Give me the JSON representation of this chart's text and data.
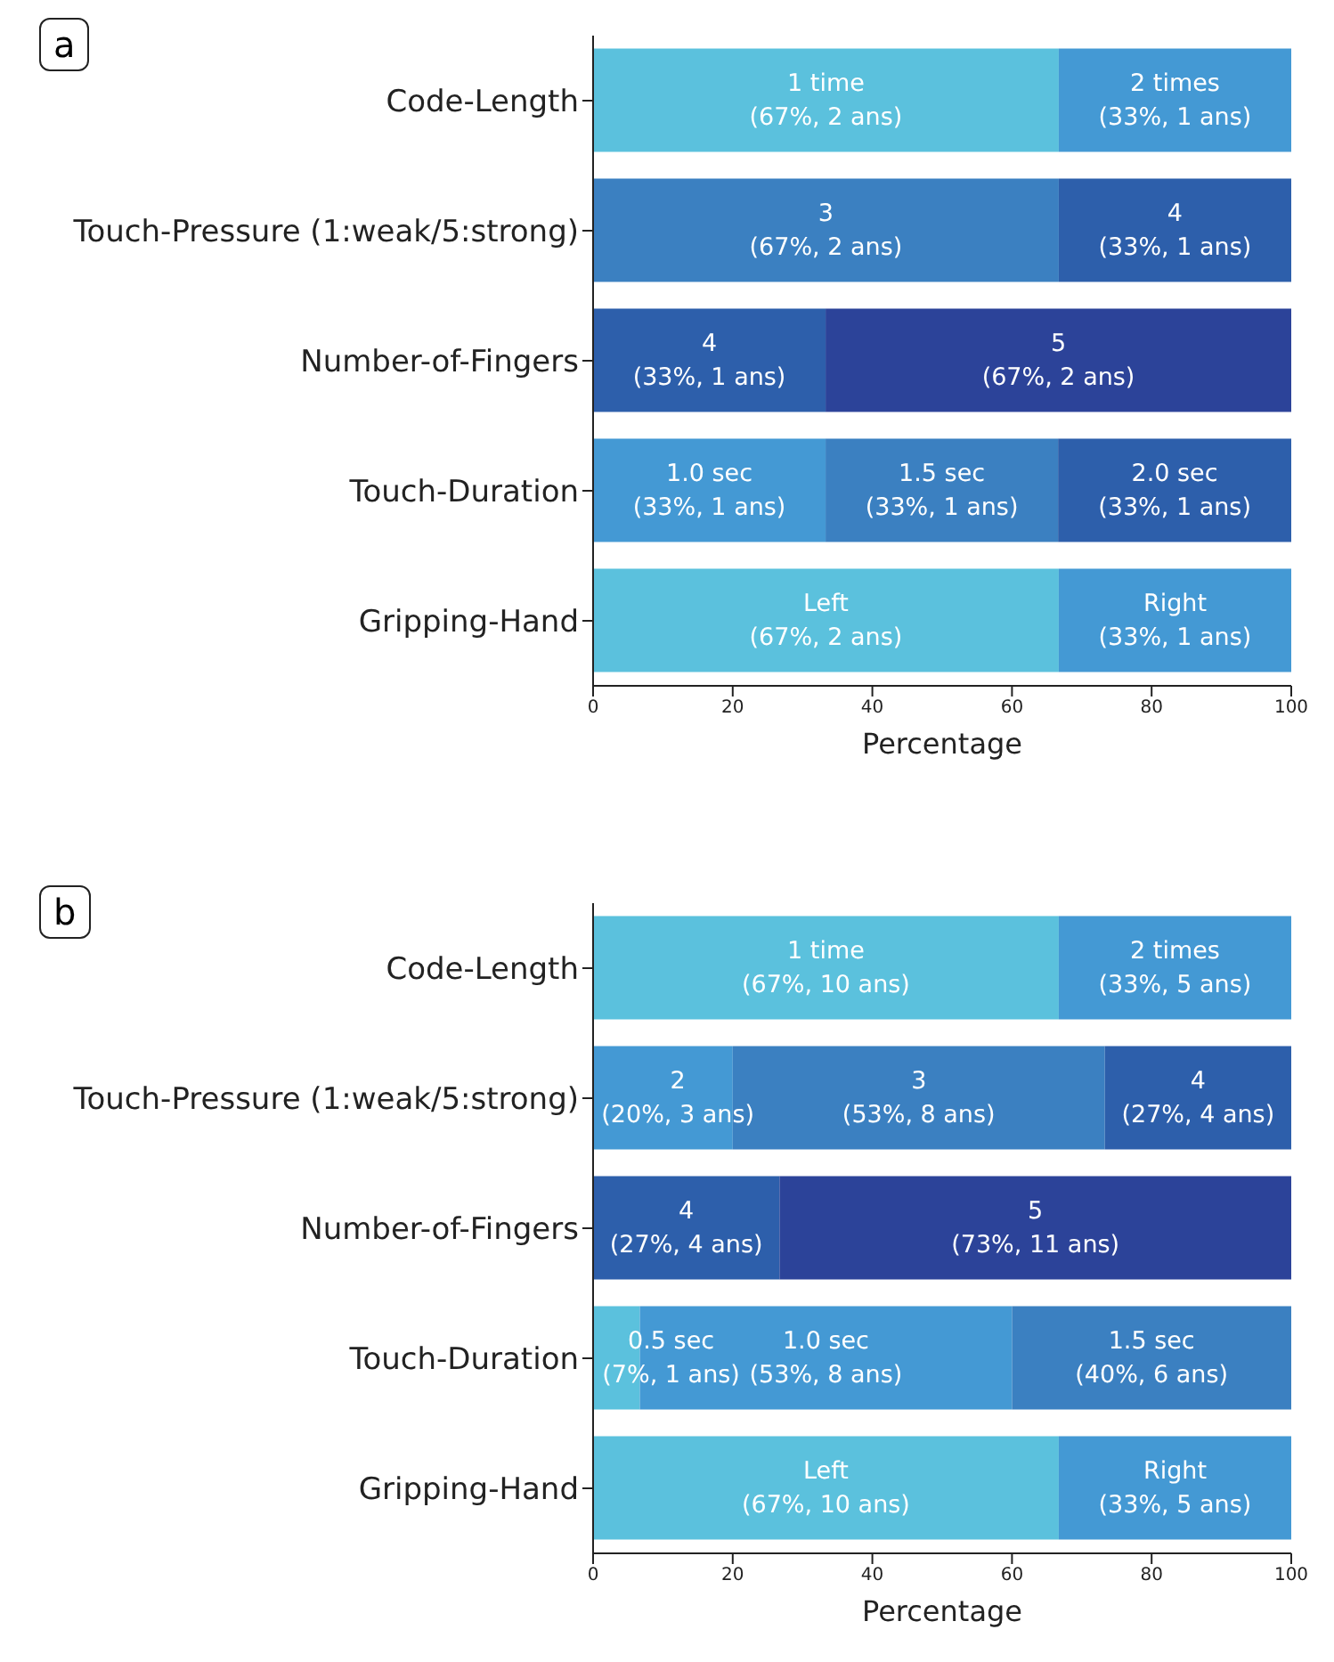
{
  "chart_data": [
    {
      "type": "bar",
      "title": "a",
      "orientation": "horizontal",
      "stacked": true,
      "categories": [
        "Code-Length",
        "Touch-Pressure (1:weak/5:strong)",
        "Number-of-Fingers",
        "Touch-Duration",
        "Gripping-Hand"
      ],
      "xlabel": "Percentage",
      "xlim": [
        0,
        100
      ],
      "xticks": [
        0,
        20,
        40,
        60,
        80,
        100
      ],
      "series": [
        {
          "values": [
            66.7,
            66.7,
            33.3,
            33.3,
            66.7
          ],
          "colors": [
            "#5bc1dd",
            "#3b80c1",
            "#2d5fab",
            "#4499d4",
            "#5bc1dd"
          ],
          "value_labels": [
            "1 time\n(67%, 2 ans)",
            "3\n(67%, 2 ans)",
            "4\n(33%, 1 ans)",
            "1.0 sec\n(33%, 1 ans)",
            "Left\n(67%, 2 ans)"
          ]
        },
        {
          "values": [
            33.3,
            33.3,
            66.7,
            33.3,
            33.3
          ],
          "colors": [
            "#4499d4",
            "#2d5fab",
            "#2c4399",
            "#3b80c1",
            "#4499d4"
          ],
          "value_labels": [
            "2 times\n(33%, 1 ans)",
            "4\n(33%, 1 ans)",
            "5\n(67%, 2 ans)",
            "1.5 sec\n(33%, 1 ans)",
            "Right\n(33%, 1 ans)"
          ]
        },
        {
          "values": [
            null,
            null,
            null,
            33.4,
            null
          ],
          "colors": [
            null,
            null,
            null,
            "#2d5fab",
            null
          ],
          "value_labels": [
            null,
            null,
            null,
            "2.0 sec\n(33%, 1 ans)",
            null
          ]
        }
      ]
    },
    {
      "type": "bar",
      "title": "b",
      "orientation": "horizontal",
      "stacked": true,
      "categories": [
        "Code-Length",
        "Touch-Pressure (1:weak/5:strong)",
        "Number-of-Fingers",
        "Touch-Duration",
        "Gripping-Hand"
      ],
      "xlabel": "Percentage",
      "xlim": [
        0,
        100
      ],
      "xticks": [
        0,
        20,
        40,
        60,
        80,
        100
      ],
      "series": [
        {
          "values": [
            66.7,
            20,
            26.7,
            6.7,
            66.7
          ],
          "colors": [
            "#5bc1dd",
            "#4499d4",
            "#2d5fab",
            "#5bc1dd",
            "#5bc1dd"
          ],
          "value_labels": [
            "1 time\n(67%, 10 ans)",
            "2\n(20%, 3 ans)",
            "4\n(27%, 4 ans)",
            "0.5 sec\n(7%, 1 ans)",
            "Left\n(67%, 10 ans)"
          ]
        },
        {
          "values": [
            33.3,
            53.3,
            73.3,
            53.3,
            33.3
          ],
          "colors": [
            "#4499d4",
            "#3b80c1",
            "#2c4399",
            "#4499d4",
            "#4499d4"
          ],
          "value_labels": [
            "2 times\n(33%, 5 ans)",
            "3\n(53%, 8 ans)",
            "5\n(73%, 11 ans)",
            "1.0 sec\n(53%, 8 ans)",
            "Right\n(33%, 5 ans)"
          ]
        },
        {
          "values": [
            null,
            26.7,
            null,
            40,
            null
          ],
          "colors": [
            null,
            "#2d5fab",
            null,
            "#3b80c1",
            null
          ],
          "value_labels": [
            null,
            "4\n(27%, 4 ans)",
            null,
            "1.5 sec\n(40%, 6 ans)",
            null
          ]
        }
      ]
    }
  ]
}
